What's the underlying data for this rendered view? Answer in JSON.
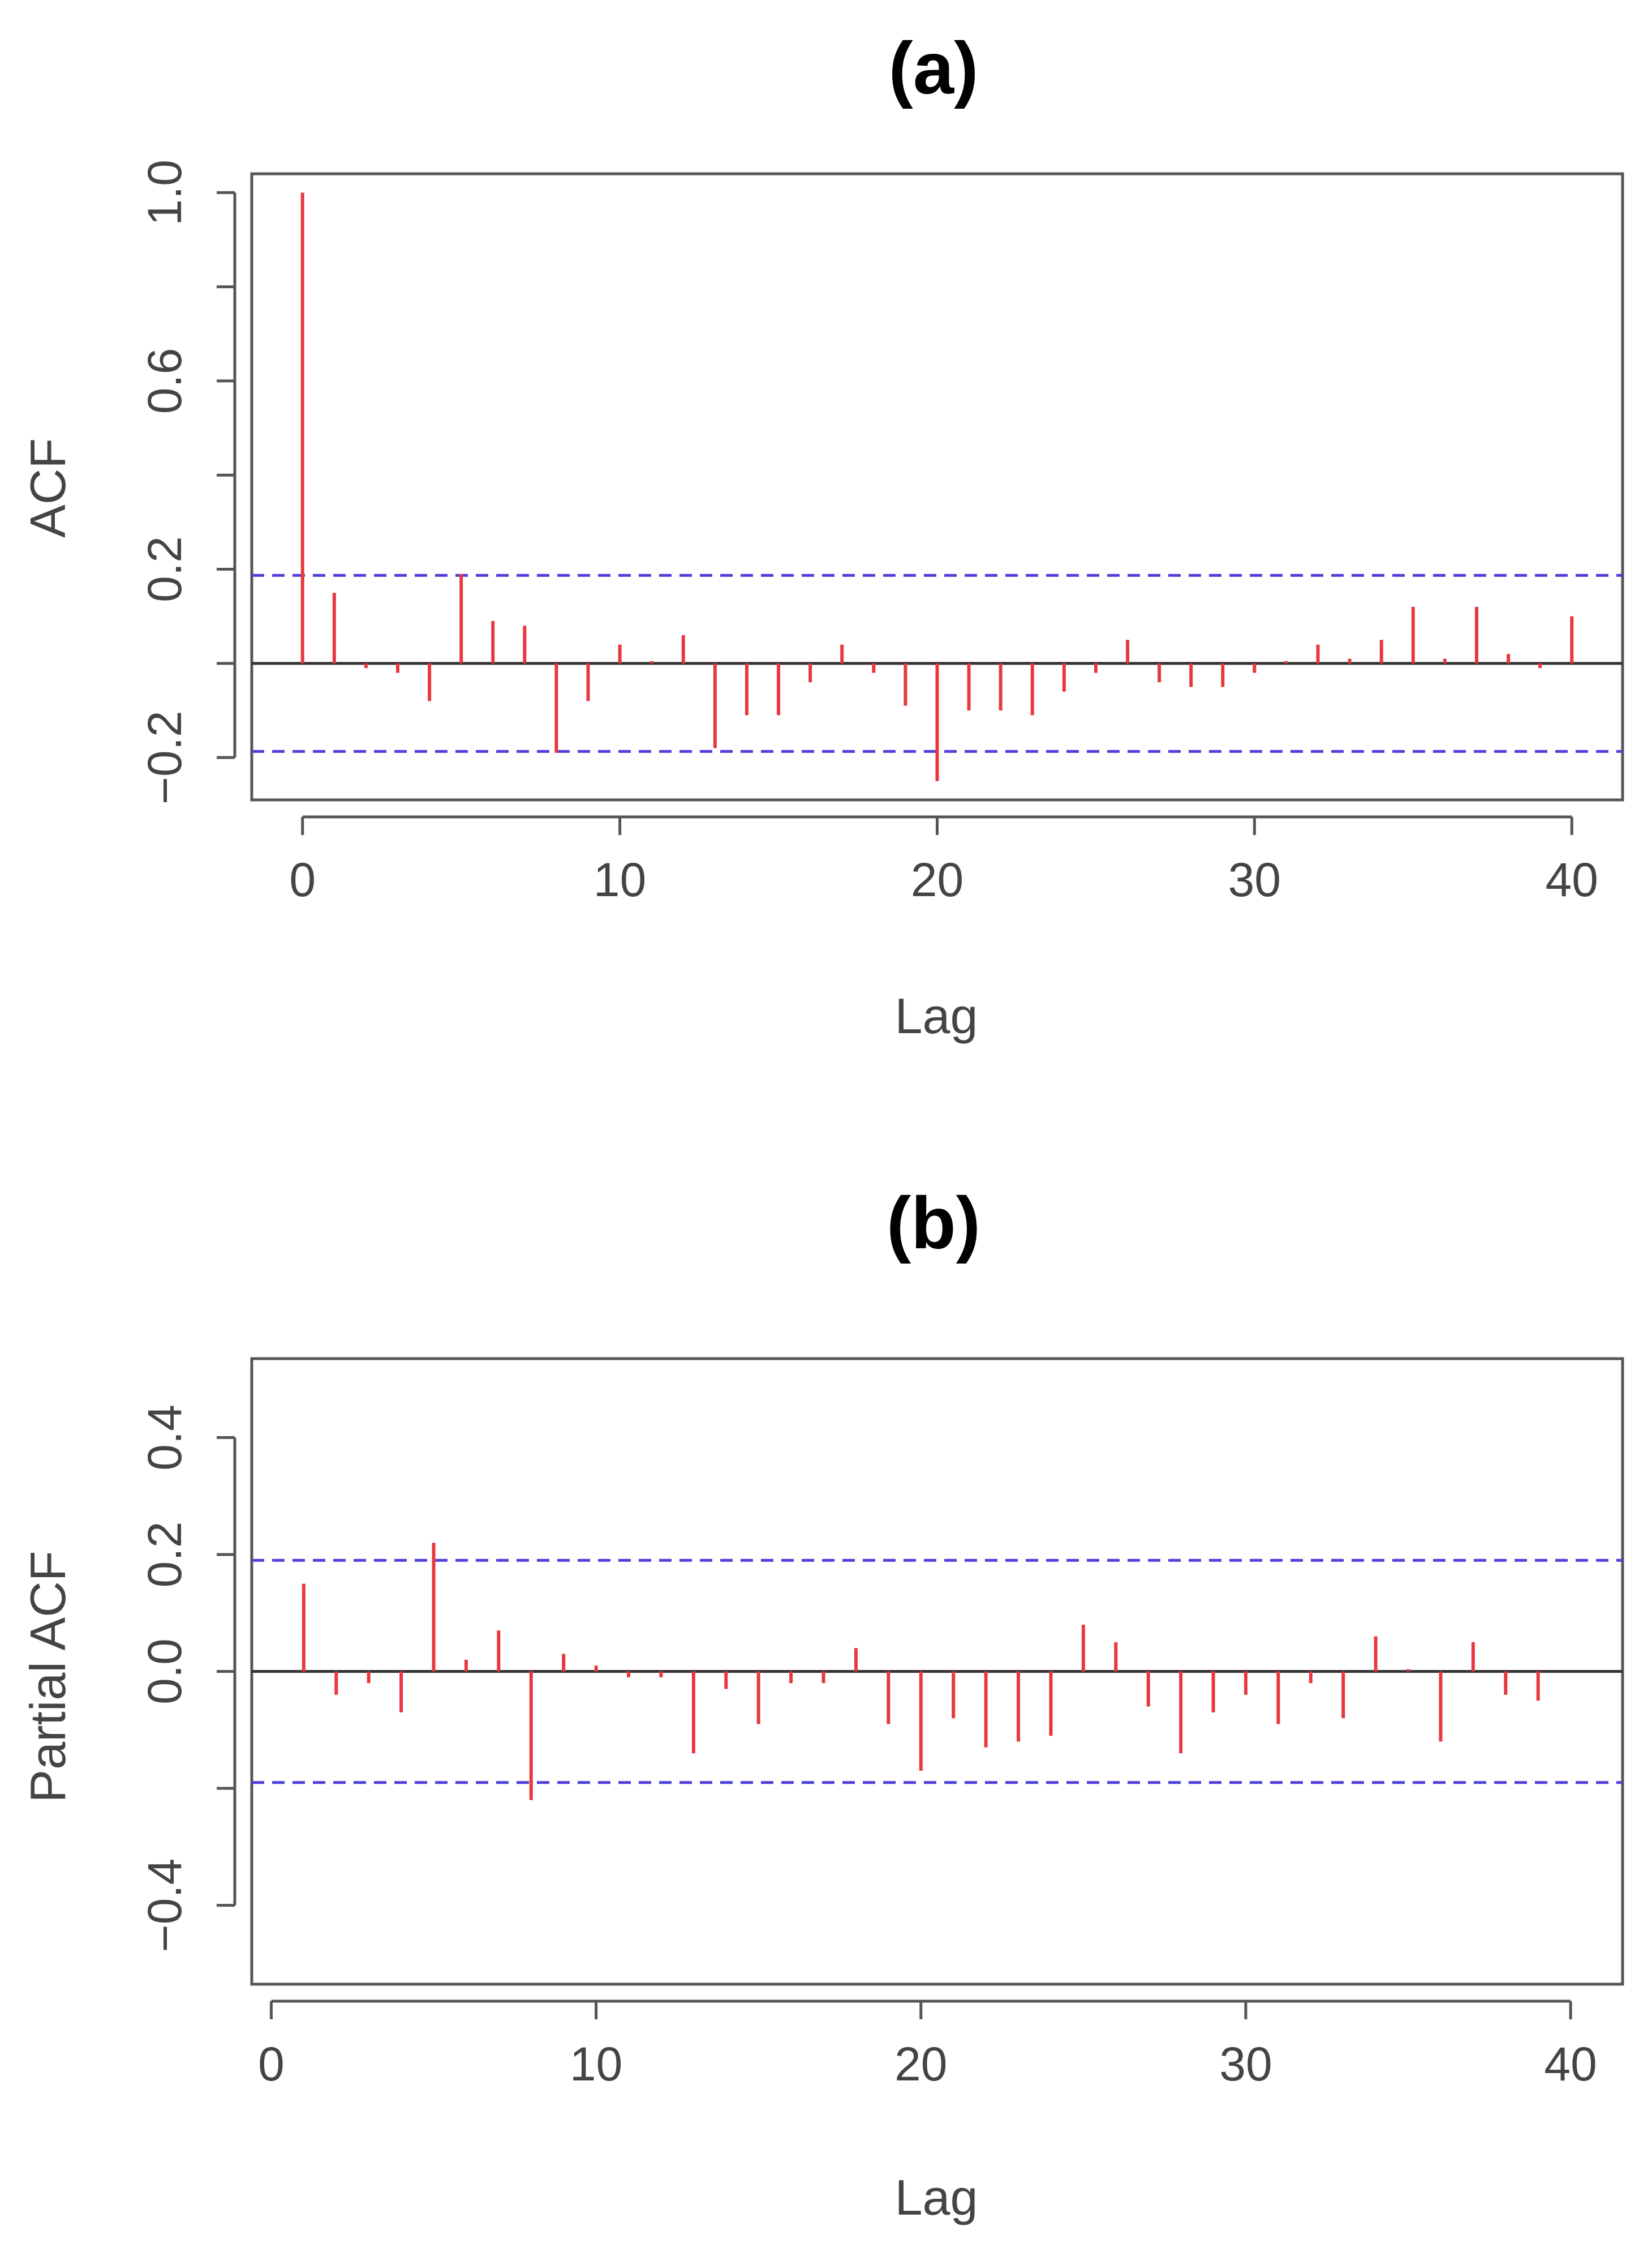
{
  "chart_data": [
    {
      "id": "acf",
      "type": "bar",
      "title": "(a)",
      "xlabel": "Lag",
      "ylabel": "ACF",
      "xlim": [
        -1.6,
        41.6
      ],
      "ylim": [
        -0.29,
        1.04
      ],
      "xticks": [
        0,
        10,
        20,
        30,
        40
      ],
      "xtick_labels": [
        "0",
        "10",
        "20",
        "30",
        "40"
      ],
      "yticks": [
        -0.2,
        0.2,
        0.6,
        1.0
      ],
      "ytick_labels": [
        "−0.2",
        "0.2",
        "0.6",
        "1.0"
      ],
      "yminor_ticks": [
        0.0,
        0.4,
        0.8
      ],
      "confidence_band": 0.187,
      "grid": false,
      "colors": {
        "bar": "#e8383d",
        "band": "#4f3fdc",
        "zero": "#333333",
        "frame": "#555555"
      },
      "series": [
        {
          "name": "ACF",
          "x": [
            0,
            1,
            2,
            3,
            4,
            5,
            6,
            7,
            8,
            9,
            10,
            11,
            12,
            13,
            14,
            15,
            16,
            17,
            18,
            19,
            20,
            21,
            22,
            23,
            24,
            25,
            26,
            27,
            28,
            29,
            30,
            31,
            32,
            33,
            34,
            35,
            36,
            37,
            38,
            39,
            40
          ],
          "values": [
            1.0,
            0.15,
            -0.01,
            -0.02,
            -0.08,
            0.19,
            0.09,
            0.08,
            -0.19,
            -0.08,
            0.04,
            0.0,
            0.06,
            -0.18,
            -0.11,
            -0.11,
            -0.04,
            0.04,
            -0.02,
            -0.09,
            -0.25,
            -0.1,
            -0.1,
            -0.11,
            -0.06,
            -0.02,
            0.05,
            -0.04,
            -0.05,
            -0.05,
            -0.02,
            0.0,
            0.04,
            0.01,
            0.05,
            0.12,
            0.01,
            0.12,
            0.02,
            -0.01,
            0.1
          ]
        }
      ]
    },
    {
      "id": "pacf",
      "type": "bar",
      "title": "(b)",
      "xlabel": "Lag",
      "ylabel": "Partial ACF",
      "xlim": [
        -0.6,
        41.6
      ],
      "ylim": [
        -0.535,
        0.535
      ],
      "xticks": [
        0,
        10,
        20,
        30,
        40
      ],
      "xtick_labels": [
        "0",
        "10",
        "20",
        "30",
        "40"
      ],
      "yticks": [
        -0.4,
        0.0,
        0.2,
        0.4
      ],
      "ytick_labels": [
        "−0.4",
        "0.0",
        "0.2",
        "0.4"
      ],
      "yminor_ticks": [
        -0.2
      ],
      "confidence_band": 0.19,
      "grid": false,
      "colors": {
        "bar": "#e8383d",
        "band": "#4f3fdc",
        "zero": "#333333",
        "frame": "#555555"
      },
      "series": [
        {
          "name": "Partial ACF",
          "x": [
            1,
            2,
            3,
            4,
            5,
            6,
            7,
            8,
            9,
            10,
            11,
            12,
            13,
            14,
            15,
            16,
            17,
            18,
            19,
            20,
            21,
            22,
            23,
            24,
            25,
            26,
            27,
            28,
            29,
            30,
            31,
            32,
            33,
            34,
            35,
            36,
            37,
            38,
            39
          ],
          "values": [
            0.15,
            -0.04,
            -0.02,
            -0.07,
            0.22,
            0.02,
            0.07,
            -0.22,
            0.03,
            0.01,
            -0.01,
            -0.01,
            -0.14,
            -0.03,
            -0.09,
            -0.02,
            -0.02,
            0.04,
            -0.09,
            -0.17,
            -0.08,
            -0.13,
            -0.12,
            -0.11,
            0.08,
            0.05,
            -0.06,
            -0.14,
            -0.07,
            -0.04,
            -0.09,
            -0.02,
            -0.08,
            0.06,
            0.0,
            -0.12,
            0.05,
            -0.04,
            -0.05
          ]
        }
      ]
    }
  ]
}
